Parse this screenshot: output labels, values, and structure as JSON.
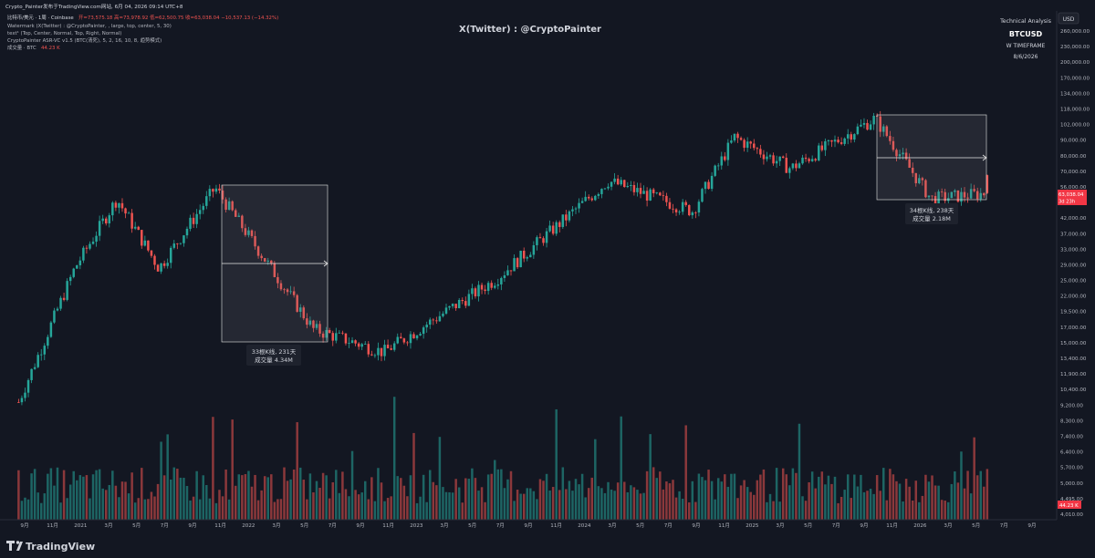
{
  "header": {
    "line1": "Crypto_Painter发布于TradingView.com网站, 6月 04, 2026 09:14 UTC+8",
    "legend_symbol": "比特币/美元 · 1周 · Coinbase",
    "legend_ohlc": "开=73,575.18  高=73,978.92  低=62,500.75  收=63,038.04  −10,537.13 (−14.32%)",
    "legend_line2": "Watermark (X(Twitter) : @CryptoPainter, , large, top, center, 5, 30)",
    "legend_line3": "text¹ (Top, Center, Normal, Top, Right, Normal)",
    "legend_line4": "CryptoPainter ASR-VC v1.5 (BTC(清死), 5, 2, 16, 10, 8, 趋势模式)",
    "legend_line5_label": "成交量 · BTC",
    "legend_line5_value": "44.23 K"
  },
  "watermark": "X(Twitter) : @CryptoPainter",
  "ta_box": {
    "line1": "Technical Analysis",
    "line2": "BTCUSD",
    "line3": "W TIMEFRAME",
    "line4": "8/6/2026"
  },
  "price_axis": {
    "currency": "USD",
    "ticks": [
      "260,000.00",
      "230,000.00",
      "200,000.00",
      "170,000.00",
      "134,000.00",
      "118,000.00",
      "102,000.00",
      "90,000.00",
      "80,000.00",
      "70,000.00",
      "56,000.00",
      "48,000.00",
      "42,000.00",
      "37,000.00",
      "33,000.00",
      "29,000.00",
      "25,000.00",
      "22,000.00",
      "19,500.00",
      "17,000.00",
      "15,000.00",
      "13,400.00",
      "11,900.00",
      "10,400.00",
      "9,200.00",
      "8,300.00",
      "7,400.00",
      "6,400.00",
      "5,700.00",
      "5,000.00",
      "4,495.00",
      "4,010.00"
    ],
    "last_price_label": "63,038.04",
    "last_price_countdown": "3d 23h",
    "volume_label": "44.23 K"
  },
  "time_axis": {
    "labels": [
      "9月",
      "11月",
      "2021",
      "3月",
      "5月",
      "7月",
      "9月",
      "11月",
      "2022",
      "3月",
      "5月",
      "7月",
      "9月",
      "11月",
      "2023",
      "3月",
      "5月",
      "7月",
      "9月",
      "11月",
      "2024",
      "3月",
      "5月",
      "7月",
      "9月",
      "11月",
      "2025",
      "3月",
      "5月",
      "7月",
      "9月",
      "11月",
      "2026",
      "3月",
      "5月",
      "7月",
      "9月"
    ]
  },
  "annotations": [
    {
      "line1": "33根K线, 231天",
      "line2": "成交量 4.34M"
    },
    {
      "line1": "34根K线, 238天",
      "line2": "成交量 2.18M"
    }
  ],
  "brand": {
    "logo": "tradingview-logo",
    "name": "TradingView"
  },
  "colors": {
    "up": "#26a69a",
    "down": "#ef5350",
    "background": "#131722",
    "text": "#d1d4dc",
    "price_tag": "#f23645"
  },
  "chart_data": {
    "type": "candlestick",
    "timeframe": "1W",
    "symbol": "BTCUSD",
    "y_scale": "log",
    "x_range": [
      "2020-08",
      "2026-09"
    ],
    "ylim": [
      4010,
      260000
    ],
    "key_points": [
      {
        "date": "2020-09",
        "close": 10400
      },
      {
        "date": "2021-01",
        "close": 33000
      },
      {
        "date": "2021-04",
        "close": 60000
      },
      {
        "date": "2021-07",
        "close": 33000
      },
      {
        "date": "2021-11",
        "close": 66000
      },
      {
        "date": "2022-06",
        "close": 19500
      },
      {
        "date": "2022-11",
        "close": 16000
      },
      {
        "date": "2023-07",
        "close": 30000
      },
      {
        "date": "2024-03",
        "close": 70000
      },
      {
        "date": "2024-09",
        "close": 54000
      },
      {
        "date": "2024-12",
        "close": 102000
      },
      {
        "date": "2025-04",
        "close": 78000
      },
      {
        "date": "2025-10",
        "close": 120000
      },
      {
        "date": "2026-02",
        "close": 60000
      },
      {
        "date": "2026-06",
        "close": 63038.04
      }
    ],
    "last": {
      "open": 73575.18,
      "high": 73978.92,
      "low": 62500.75,
      "close": 63038.04,
      "change": -10537.13,
      "change_pct": -14.32
    },
    "volume_last": "44.23 K"
  }
}
